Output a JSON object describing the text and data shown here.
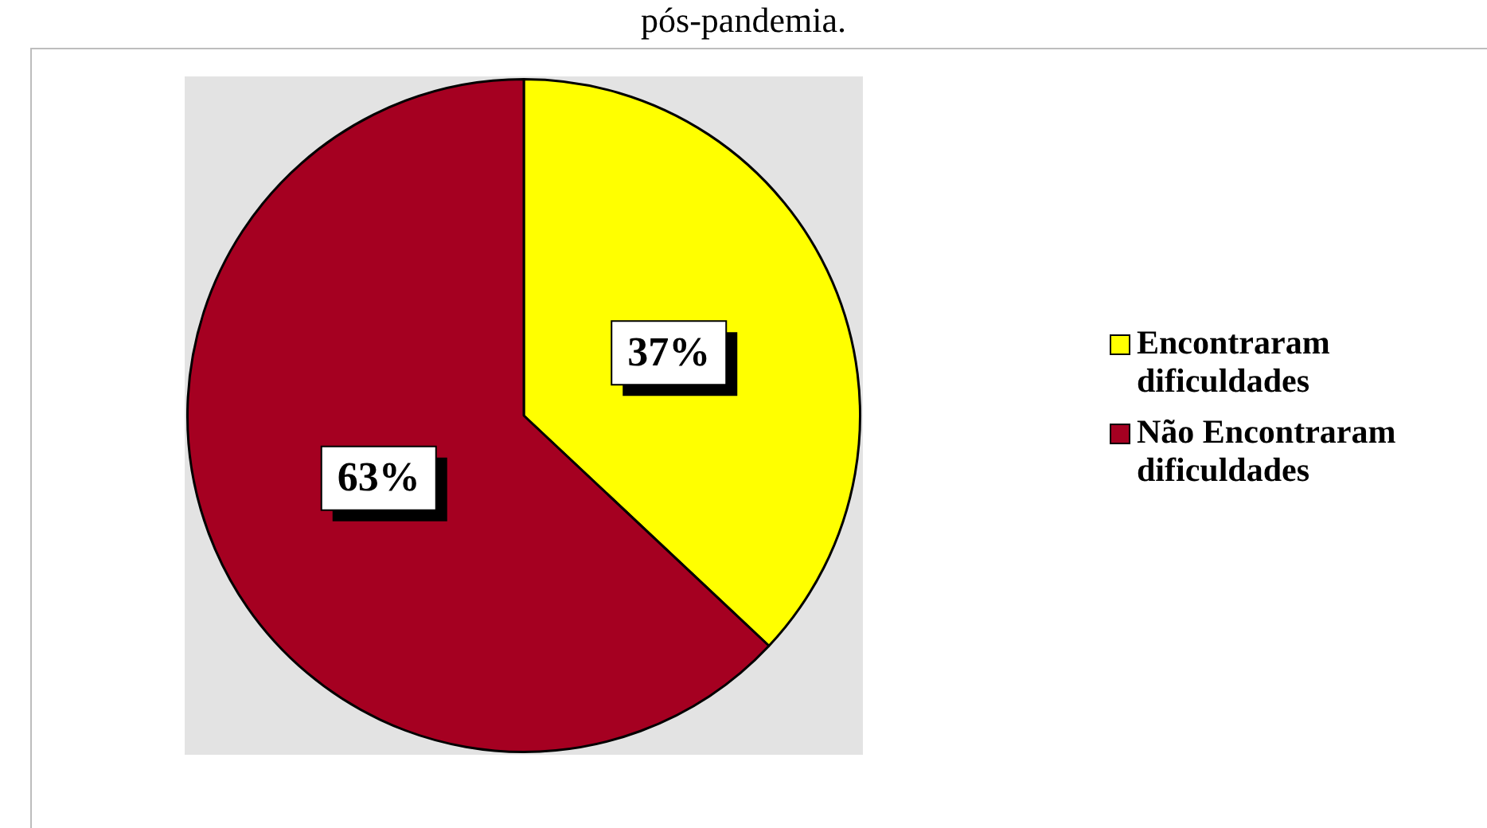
{
  "chart_data": {
    "type": "pie",
    "title": "pós-pandemia.",
    "categories": [
      "Encontraram dificuldades",
      "Não Encontraram dificuldades"
    ],
    "values": [
      37,
      63
    ],
    "colors": [
      "#ffff00",
      "#a50021"
    ],
    "value_labels": [
      "37%",
      "63%"
    ],
    "legend": "right"
  }
}
